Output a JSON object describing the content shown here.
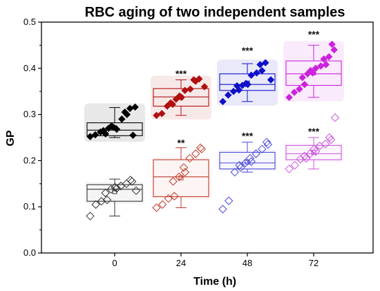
{
  "chart_data": {
    "type": "box",
    "title": "RBC aging of two independent samples",
    "xlabel": "Time (h)",
    "ylabel": "GP",
    "categories": [
      "0",
      "24",
      "48",
      "72"
    ],
    "ylim": [
      0.0,
      0.5
    ],
    "yticks": [
      "0.0",
      "0.1",
      "0.2",
      "0.3",
      "0.4",
      "0.5"
    ],
    "grid": false,
    "series": [
      {
        "marker": "filled-diamond",
        "colors": [
          "#000000",
          "#b01010",
          "#1010c8",
          "#cc22dd"
        ],
        "groups": [
          {
            "category": "0",
            "q1": 0.254,
            "median": 0.266,
            "q3": 0.282,
            "whisker_low": 0.25,
            "whisker_high": 0.315,
            "mean": 0.271,
            "points": [
              0.252,
              0.256,
              0.262,
              0.258,
              0.265,
              0.27,
              0.272,
              0.275,
              0.268,
              0.29,
              0.3,
              0.305,
              0.313,
              0.316,
              0.255
            ]
          },
          {
            "category": "24",
            "q1": 0.318,
            "median": 0.338,
            "q3": 0.356,
            "whisker_low": 0.298,
            "whisker_high": 0.375,
            "mean": 0.337,
            "points": [
              0.298,
              0.302,
              0.318,
              0.322,
              0.325,
              0.333,
              0.337,
              0.34,
              0.352,
              0.355,
              0.372,
              0.375,
              0.377,
              0.36
            ]
          },
          {
            "category": "48",
            "q1": 0.352,
            "median": 0.365,
            "q3": 0.388,
            "whisker_low": 0.328,
            "whisker_high": 0.41,
            "mean": 0.368,
            "points": [
              0.328,
              0.342,
              0.35,
              0.353,
              0.362,
              0.363,
              0.365,
              0.367,
              0.385,
              0.39,
              0.395,
              0.408,
              0.412,
              0.375
            ]
          },
          {
            "category": "72",
            "q1": 0.363,
            "median": 0.388,
            "q3": 0.416,
            "whisker_low": 0.337,
            "whisker_high": 0.45,
            "mean": 0.39,
            "points": [
              0.337,
              0.348,
              0.355,
              0.365,
              0.38,
              0.388,
              0.39,
              0.395,
              0.4,
              0.405,
              0.408,
              0.42,
              0.425,
              0.44,
              0.452
            ]
          }
        ]
      },
      {
        "marker": "open-diamond",
        "colors": [
          "#333333",
          "#c0392b",
          "#4a4ad8",
          "#cc55dd"
        ],
        "groups": [
          {
            "category": "0",
            "q1": 0.112,
            "median": 0.138,
            "q3": 0.148,
            "whisker_low": 0.08,
            "whisker_high": 0.16,
            "mean": 0.133,
            "points": [
              0.08,
              0.105,
              0.112,
              0.115,
              0.13,
              0.138,
              0.14,
              0.142,
              0.145,
              0.15,
              0.155,
              0.158,
              0.135
            ]
          },
          {
            "category": "24",
            "q1": 0.122,
            "median": 0.165,
            "q3": 0.202,
            "whisker_low": 0.098,
            "whisker_high": 0.228,
            "mean": 0.163,
            "points": [
              0.098,
              0.105,
              0.118,
              0.123,
              0.155,
              0.165,
              0.175,
              0.185,
              0.205,
              0.215,
              0.225,
              0.228
            ]
          },
          {
            "category": "48",
            "q1": 0.182,
            "median": 0.195,
            "q3": 0.218,
            "whisker_low": 0.175,
            "whisker_high": 0.24,
            "mean": 0.197,
            "points": [
              0.095,
              0.113,
              0.175,
              0.185,
              0.19,
              0.195,
              0.198,
              0.205,
              0.215,
              0.225,
              0.235,
              0.24
            ]
          },
          {
            "category": "72",
            "q1": 0.202,
            "median": 0.215,
            "q3": 0.233,
            "whisker_low": 0.182,
            "whisker_high": 0.25,
            "mean": 0.218,
            "points": [
              0.182,
              0.19,
              0.203,
              0.205,
              0.21,
              0.215,
              0.22,
              0.225,
              0.232,
              0.236,
              0.245,
              0.25,
              0.293
            ]
          }
        ]
      }
    ],
    "annotations": [
      {
        "category": "24",
        "text": "***",
        "y": 0.39
      },
      {
        "category": "24",
        "text": "**",
        "y": 0.24
      },
      {
        "category": "48",
        "text": "***",
        "y": 0.44
      },
      {
        "category": "48",
        "text": "***",
        "y": 0.255
      },
      {
        "category": "72",
        "text": "***",
        "y": 0.475
      },
      {
        "category": "72",
        "text": "***",
        "y": 0.265
      }
    ]
  }
}
